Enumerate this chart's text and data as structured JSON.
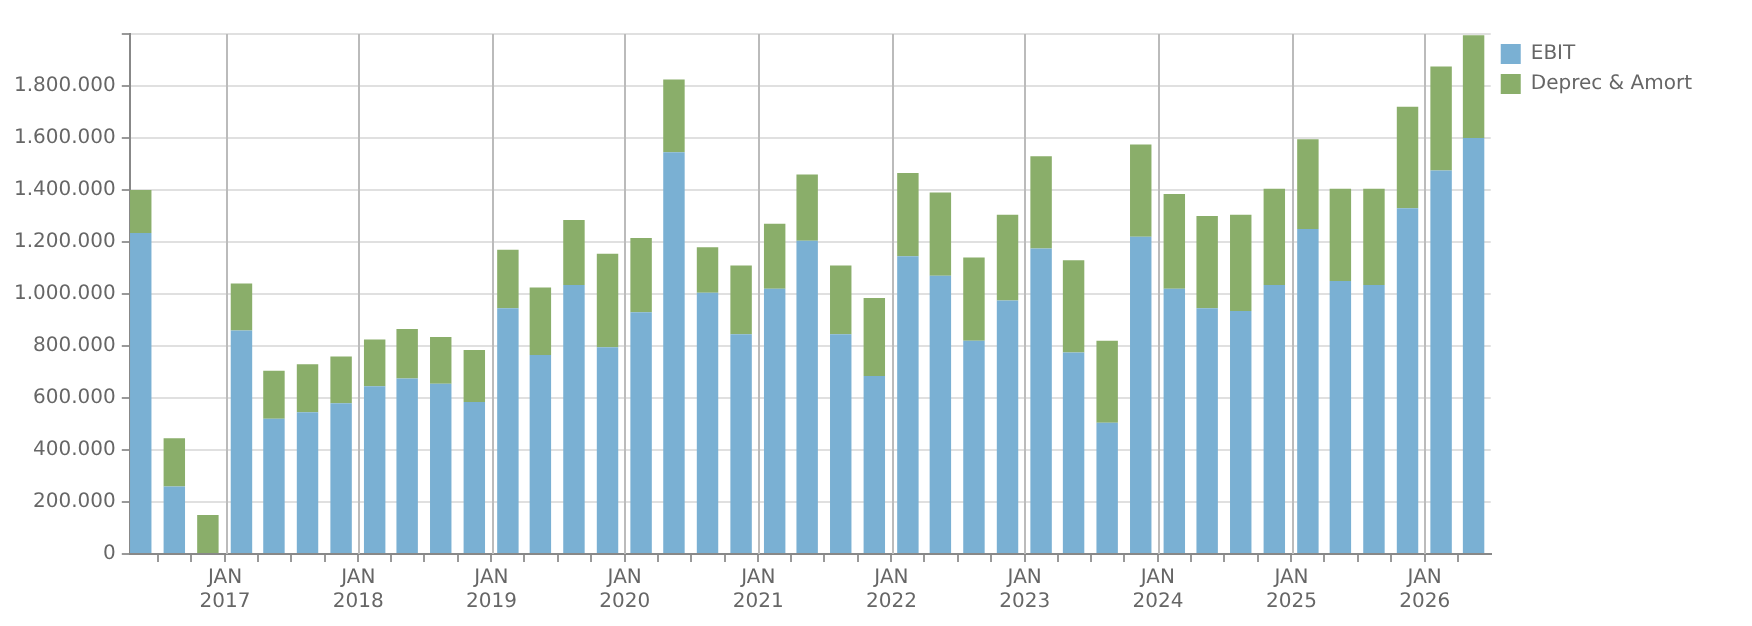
{
  "chart_data": {
    "type": "bar",
    "stacked": true,
    "x": [
      "2016-05-15",
      "2016-08-15",
      "2016-11-15",
      "2017-02-15",
      "2017-05-15",
      "2017-08-15",
      "2017-11-15",
      "2018-02-15",
      "2018-05-15",
      "2018-08-15",
      "2018-11-15",
      "2019-02-15",
      "2019-05-15",
      "2019-08-15",
      "2019-11-15",
      "2020-02-15",
      "2020-05-15",
      "2020-08-15",
      "2020-11-15",
      "2021-02-15",
      "2021-05-15",
      "2021-08-15",
      "2021-11-15",
      "2022-02-15",
      "2022-05-15",
      "2022-08-15",
      "2022-11-15",
      "2023-02-15",
      "2023-05-15",
      "2023-08-15",
      "2023-11-15",
      "2024-02-15",
      "2024-05-15",
      "2024-08-15",
      "2024-11-15",
      "2025-02-15",
      "2025-05-15",
      "2025-08-15",
      "2025-11-15",
      "2026-02-15",
      "2026-05-15"
    ],
    "series": [
      {
        "name": "EBIT",
        "color": "#7ab0d3",
        "values": [
          1235000,
          260000,
          0,
          860000,
          520000,
          545000,
          580000,
          645000,
          675000,
          655000,
          585000,
          945000,
          765000,
          1035000,
          795000,
          930000,
          1545000,
          1005000,
          845000,
          1020000,
          1205000,
          845000,
          685000,
          1145000,
          1070000,
          820000,
          975000,
          1175000,
          775000,
          505000,
          1220000,
          1020000,
          945000,
          935000,
          1035000,
          1250000,
          1050000,
          1035000,
          1330000,
          1475000,
          1600000
        ]
      },
      {
        "name": "Deprec & Amort",
        "color": "#8aae6a",
        "values": [
          165000,
          185000,
          150000,
          180000,
          185000,
          185000,
          180000,
          180000,
          190000,
          180000,
          200000,
          225000,
          260000,
          250000,
          360000,
          285000,
          280000,
          175000,
          265000,
          250000,
          255000,
          265000,
          300000,
          320000,
          320000,
          320000,
          330000,
          355000,
          355000,
          315000,
          355000,
          365000,
          355000,
          370000,
          370000,
          345000,
          355000,
          370000,
          390000,
          400000,
          395000
        ]
      }
    ],
    "xlim": [
      "2016-04-15",
      "2026-07-01"
    ],
    "xticks": [
      {
        "value": "2016-07",
        "label": null
      },
      {
        "value": "2016-10",
        "label": null
      },
      {
        "value": "2017-01",
        "label": "JAN\n2017"
      },
      {
        "value": "2017-04",
        "label": null
      },
      {
        "value": "2017-07",
        "label": null
      },
      {
        "value": "2017-10",
        "label": null
      },
      {
        "value": "2018-01",
        "label": "JAN\n2018"
      },
      {
        "value": "2018-04",
        "label": null
      },
      {
        "value": "2018-07",
        "label": null
      },
      {
        "value": "2018-10",
        "label": null
      },
      {
        "value": "2019-01",
        "label": "JAN\n2019"
      },
      {
        "value": "2019-04",
        "label": null
      },
      {
        "value": "2019-07",
        "label": null
      },
      {
        "value": "2019-10",
        "label": null
      },
      {
        "value": "2020-01",
        "label": "JAN\n2020"
      },
      {
        "value": "2020-04",
        "label": null
      },
      {
        "value": "2020-07",
        "label": null
      },
      {
        "value": "2020-10",
        "label": null
      },
      {
        "value": "2021-01",
        "label": "JAN\n2021"
      },
      {
        "value": "2021-04",
        "label": null
      },
      {
        "value": "2021-07",
        "label": null
      },
      {
        "value": "2021-10",
        "label": null
      },
      {
        "value": "2022-01",
        "label": "JAN\n2022"
      },
      {
        "value": "2022-04",
        "label": null
      },
      {
        "value": "2022-07",
        "label": null
      },
      {
        "value": "2022-10",
        "label": null
      },
      {
        "value": "2023-01",
        "label": "JAN\n2023"
      },
      {
        "value": "2023-04",
        "label": null
      },
      {
        "value": "2023-07",
        "label": null
      },
      {
        "value": "2023-10",
        "label": null
      },
      {
        "value": "2024-01",
        "label": "JAN\n2024"
      },
      {
        "value": "2024-04",
        "label": null
      },
      {
        "value": "2024-07",
        "label": null
      },
      {
        "value": "2024-10",
        "label": null
      },
      {
        "value": "2025-01",
        "label": "JAN\n2025"
      },
      {
        "value": "2025-04",
        "label": null
      },
      {
        "value": "2025-07",
        "label": null
      },
      {
        "value": "2025-10",
        "label": null
      },
      {
        "value": "2026-01",
        "label": "JAN\n2026"
      },
      {
        "value": "2026-04",
        "label": null
      }
    ],
    "ylim": [
      0,
      2000000
    ],
    "yticks": [
      {
        "value": 0,
        "label": "0"
      },
      {
        "value": 200000,
        "label": "200.000"
      },
      {
        "value": 400000,
        "label": "400.000"
      },
      {
        "value": 600000,
        "label": "600.000"
      },
      {
        "value": 800000,
        "label": "800.000"
      },
      {
        "value": 1000000,
        "label": "1.000.000"
      },
      {
        "value": 1200000,
        "label": "1.200.000"
      },
      {
        "value": 1400000,
        "label": "1.400.000"
      },
      {
        "value": 1600000,
        "label": "1.600.000"
      },
      {
        "value": 1800000,
        "label": "1.800.000"
      },
      {
        "value": 2000000,
        "label": null
      }
    ],
    "grid": true,
    "legend": "top right"
  }
}
